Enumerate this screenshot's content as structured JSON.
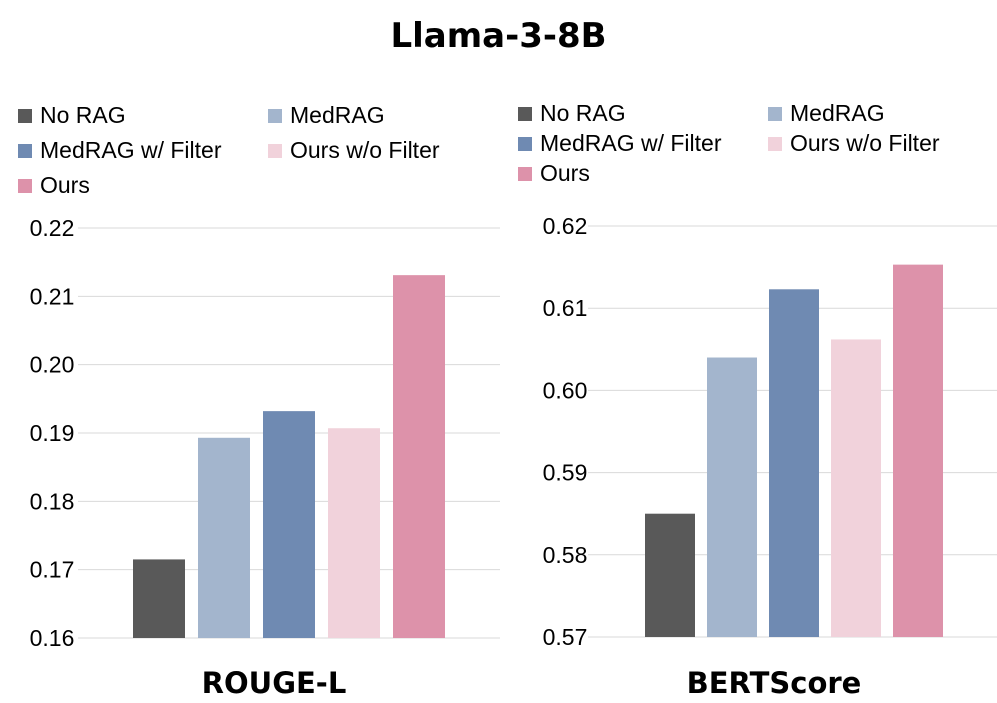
{
  "title": "Llama-3-8B",
  "colors": {
    "No RAG": "#595959",
    "MedRAG": "#a3b5cd",
    "MedRAG w/ Filter": "#6f8ab2",
    "Ours w/o Filter": "#f1d2db",
    "Ours": "#dd92aa"
  },
  "chart_data": [
    {
      "type": "bar",
      "title": "ROUGE-L",
      "categories": [
        "No RAG",
        "MedRAG",
        "MedRAG w/ Filter",
        "Ours w/o Filter",
        "Ours"
      ],
      "values": [
        0.1715,
        0.1893,
        0.1932,
        0.1907,
        0.2131
      ],
      "ylim": [
        0.16,
        0.22
      ],
      "yticks": [
        "0.16",
        "0.17",
        "0.18",
        "0.19",
        "0.20",
        "0.21",
        "0.22"
      ],
      "grid": true,
      "legend": [
        "No RAG",
        "MedRAG",
        "MedRAG w/ Filter",
        "Ours w/o Filter",
        "Ours"
      ],
      "legend_position": "top"
    },
    {
      "type": "bar",
      "title": "BERTScore",
      "categories": [
        "No RAG",
        "MedRAG",
        "MedRAG w/ Filter",
        "Ours w/o Filter",
        "Ours"
      ],
      "values": [
        0.585,
        0.604,
        0.6123,
        0.6062,
        0.6153
      ],
      "ylim": [
        0.57,
        0.62
      ],
      "yticks": [
        "0.57",
        "0.58",
        "0.59",
        "0.60",
        "0.61",
        "0.62"
      ],
      "grid": true,
      "legend": [
        "No RAG",
        "MedRAG",
        "MedRAG w/ Filter",
        "Ours w/o Filter",
        "Ours"
      ],
      "legend_position": "top"
    }
  ]
}
